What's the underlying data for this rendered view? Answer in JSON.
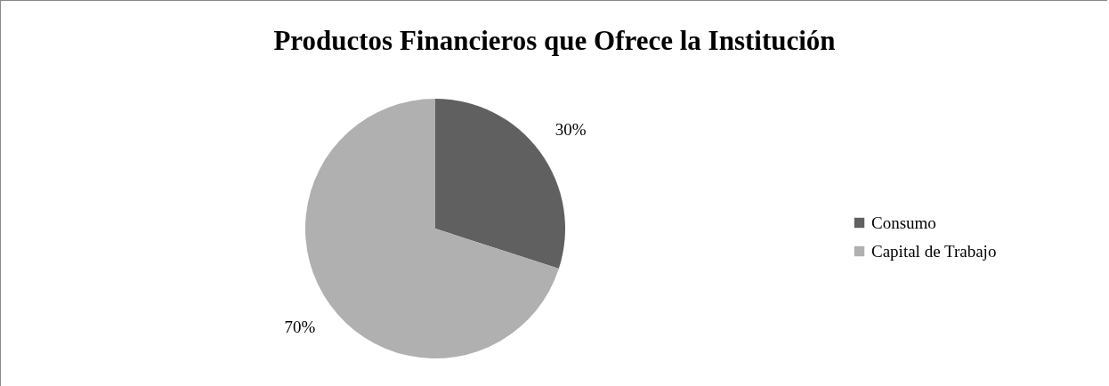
{
  "chart_data": {
    "type": "pie",
    "title": "Productos Financieros que Ofrece la Institución",
    "categories": [
      "Consumo",
      "Capital de Trabajo"
    ],
    "values": [
      30,
      70
    ],
    "colors": [
      "#606060",
      "#b0b0b0"
    ],
    "value_labels": [
      "30%",
      "70%"
    ],
    "legend": "right"
  }
}
